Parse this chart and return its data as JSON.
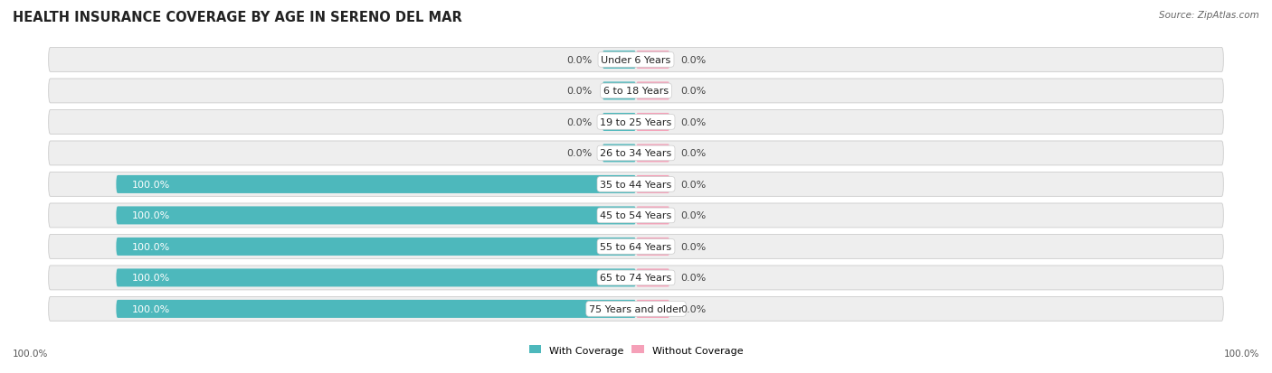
{
  "title": "HEALTH INSURANCE COVERAGE BY AGE IN SERENO DEL MAR",
  "source": "Source: ZipAtlas.com",
  "categories": [
    "Under 6 Years",
    "6 to 18 Years",
    "19 to 25 Years",
    "26 to 34 Years",
    "35 to 44 Years",
    "45 to 54 Years",
    "55 to 64 Years",
    "65 to 74 Years",
    "75 Years and older"
  ],
  "with_coverage": [
    0.0,
    0.0,
    0.0,
    0.0,
    100.0,
    100.0,
    100.0,
    100.0,
    100.0
  ],
  "without_coverage": [
    0.0,
    0.0,
    0.0,
    0.0,
    0.0,
    0.0,
    0.0,
    0.0,
    0.0
  ],
  "color_with": "#4db8bc",
  "color_without": "#f5a0b8",
  "row_bg_color": "#eeeeee",
  "row_border_color": "#cccccc",
  "title_fontsize": 10.5,
  "label_fontsize": 8,
  "category_fontsize": 8,
  "legend_fontsize": 8,
  "axis_label_fontsize": 7.5,
  "max_val": 100.0,
  "bar_height": 0.58,
  "small_bar_pct": 6.5,
  "xlim_left": -115,
  "xlim_right": 115
}
